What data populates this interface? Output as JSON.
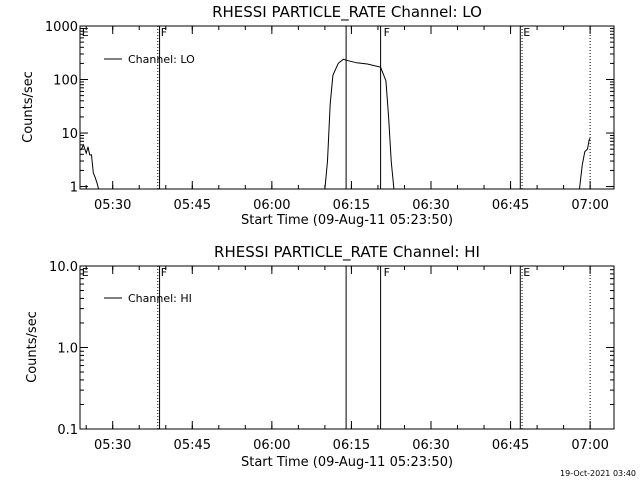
{
  "colors": {
    "background": "#ffffff",
    "foreground": "#000000"
  },
  "timestamp": "19-Oct-2021 03:40",
  "chart_data": [
    {
      "type": "line",
      "title": "RHESSI PARTICLE_RATE Channel: LO",
      "xlabel": "Start Time (09-Aug-11 05:23:50)",
      "ylabel": "Counts/sec",
      "x_ticks": [
        "05:30",
        "05:45",
        "06:00",
        "06:15",
        "06:30",
        "06:45",
        "07:00"
      ],
      "y_ticks": [
        "1",
        "10",
        "100",
        "1000"
      ],
      "y_scale": "log",
      "xlim": [
        "05:23:50",
        "07:04:30"
      ],
      "ylim": [
        0.9,
        1000
      ],
      "legend": "Channel: LO",
      "legend_position": "top-left",
      "vlines": [
        {
          "time": "05:38:30",
          "style": "dotted",
          "label": "F"
        },
        {
          "time": "05:38:50",
          "style": "solid",
          "label": ""
        },
        {
          "time": "06:14:00",
          "style": "solid",
          "label": ""
        },
        {
          "time": "06:20:30",
          "style": "solid",
          "label": "F"
        },
        {
          "time": "06:46:50",
          "style": "solid",
          "label": "E"
        },
        {
          "time": "06:47:10",
          "style": "dotted",
          "label": ""
        },
        {
          "time": "07:00:00",
          "style": "dotted",
          "label": ""
        }
      ],
      "corner_labels": [
        {
          "time": "05:24:10",
          "label": "E"
        }
      ],
      "segments": [
        [
          [
            "05:24:00",
            4.8
          ],
          [
            "05:24:30",
            6.0
          ],
          [
            "05:25:00",
            4.2
          ],
          [
            "05:25:20",
            5.5
          ],
          [
            "05:25:40",
            3.9
          ],
          [
            "05:26:00",
            3.9
          ],
          [
            "05:26:20",
            1.8
          ],
          [
            "05:26:40",
            1.5
          ],
          [
            "05:27:00",
            1.2
          ],
          [
            "05:27:20",
            0.9
          ]
        ],
        [
          [
            "06:10:00",
            0.9
          ],
          [
            "06:10:30",
            3
          ],
          [
            "06:11:00",
            35
          ],
          [
            "06:11:30",
            120
          ],
          [
            "06:12:30",
            200
          ],
          [
            "06:13:30",
            240
          ],
          [
            "06:14:00",
            230
          ],
          [
            "06:16:00",
            205
          ],
          [
            "06:18:00",
            195
          ],
          [
            "06:20:30",
            170
          ],
          [
            "06:21:30",
            95
          ],
          [
            "06:22:00",
            20
          ],
          [
            "06:22:30",
            3
          ],
          [
            "06:23:00",
            0.9
          ]
        ],
        [
          [
            "06:58:00",
            0.9
          ],
          [
            "06:58:30",
            2.5
          ],
          [
            "06:59:00",
            4.5
          ],
          [
            "06:59:30",
            5.0
          ],
          [
            "06:59:50",
            7.5
          ],
          [
            "07:00:00",
            8.0
          ]
        ]
      ]
    },
    {
      "type": "line",
      "title": "RHESSI PARTICLE_RATE Channel: HI",
      "xlabel": "Start Time (09-Aug-11 05:23:50)",
      "ylabel": "Counts/sec",
      "x_ticks": [
        "05:30",
        "05:45",
        "06:00",
        "06:15",
        "06:30",
        "06:45",
        "07:00"
      ],
      "y_ticks": [
        "0.1",
        "1.0",
        "10.0"
      ],
      "y_scale": "log",
      "xlim": [
        "05:23:50",
        "07:04:30"
      ],
      "ylim": [
        0.1,
        10
      ],
      "legend": "Channel: HI",
      "legend_position": "top-left",
      "vlines": [
        {
          "time": "05:38:30",
          "style": "dotted",
          "label": "F"
        },
        {
          "time": "05:38:50",
          "style": "solid",
          "label": ""
        },
        {
          "time": "06:14:00",
          "style": "solid",
          "label": ""
        },
        {
          "time": "06:20:30",
          "style": "solid",
          "label": "F"
        },
        {
          "time": "06:46:50",
          "style": "solid",
          "label": "E"
        },
        {
          "time": "06:47:10",
          "style": "dotted",
          "label": ""
        },
        {
          "time": "07:00:00",
          "style": "dotted",
          "label": ""
        }
      ],
      "corner_labels": [
        {
          "time": "05:24:10",
          "label": "E"
        }
      ],
      "segments": []
    }
  ]
}
